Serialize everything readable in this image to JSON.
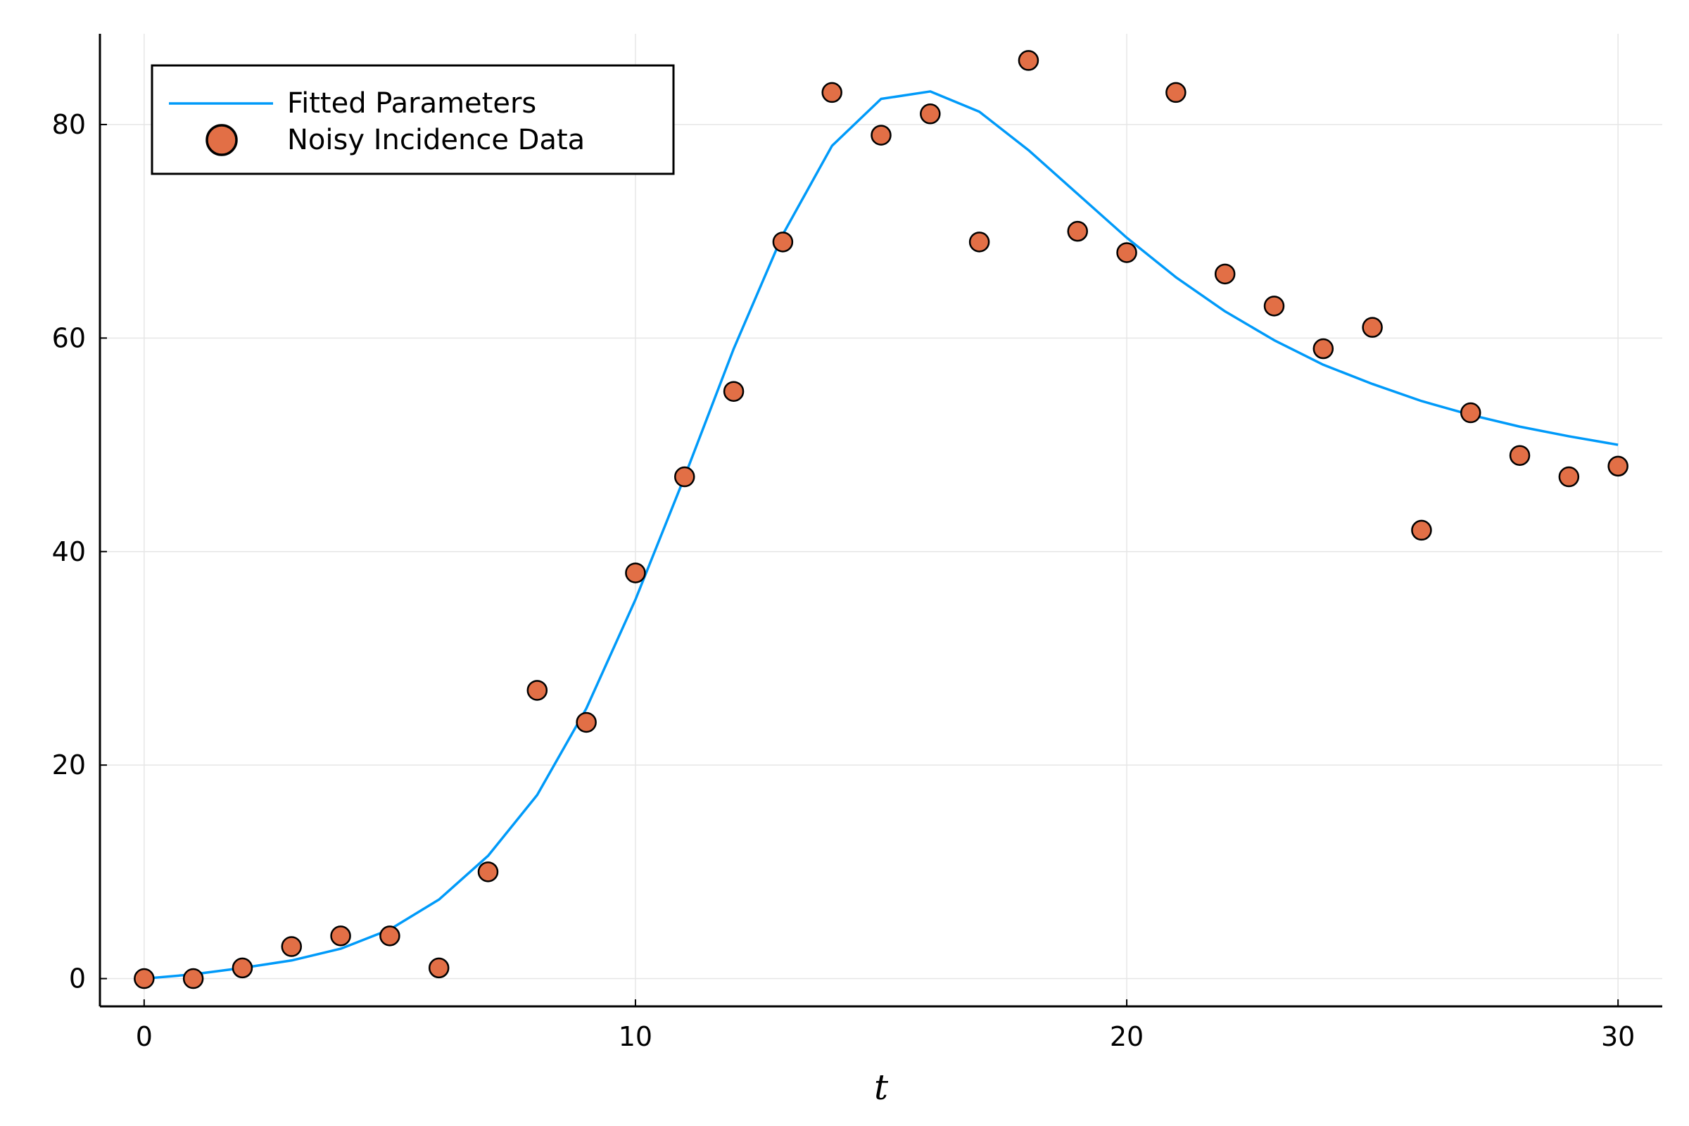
{
  "chart_data": {
    "type": "line",
    "title": "",
    "xlabel": "t",
    "ylabel": "",
    "xlim": [
      -0.9,
      30.9
    ],
    "ylim": [
      -2.6,
      88.5
    ],
    "xticks": [
      0,
      10,
      20,
      30
    ],
    "yticks": [
      0,
      20,
      40,
      60,
      80
    ],
    "grid": true,
    "legend_position": "top-left",
    "series": [
      {
        "name": "Fitted Parameters",
        "kind": "line",
        "color": "#009af9",
        "x": [
          0,
          1,
          2,
          3,
          4,
          5,
          6,
          7,
          8,
          9,
          10,
          11,
          12,
          13,
          14,
          15,
          16,
          17,
          18,
          19,
          20,
          21,
          22,
          23,
          24,
          25,
          26,
          27,
          28,
          29,
          30
        ],
        "y": [
          0,
          0.4,
          1,
          1.7,
          2.8,
          4.6,
          7.4,
          11.5,
          17.2,
          25.3,
          35.5,
          47,
          59,
          69.7,
          78,
          82.4,
          83.1,
          81.2,
          77.6,
          73.5,
          69.4,
          65.7,
          62.5,
          59.8,
          57.5,
          55.7,
          54.1,
          52.8,
          51.7,
          50.8,
          50
        ]
      },
      {
        "name": "Noisy Incidence Data",
        "kind": "scatter",
        "color": "#e26f46",
        "x": [
          0,
          1,
          2,
          3,
          4,
          5,
          6,
          7,
          8,
          9,
          10,
          11,
          12,
          13,
          14,
          15,
          16,
          17,
          18,
          19,
          20,
          21,
          22,
          23,
          24,
          25,
          26,
          27,
          28,
          29,
          30
        ],
        "y": [
          0,
          0,
          1,
          3,
          4,
          4,
          1,
          10,
          27,
          24,
          38,
          47,
          55,
          69,
          83,
          79,
          81,
          69,
          86,
          70,
          68,
          83,
          66,
          63,
          59,
          61,
          42,
          53,
          49,
          47,
          48
        ]
      }
    ]
  }
}
